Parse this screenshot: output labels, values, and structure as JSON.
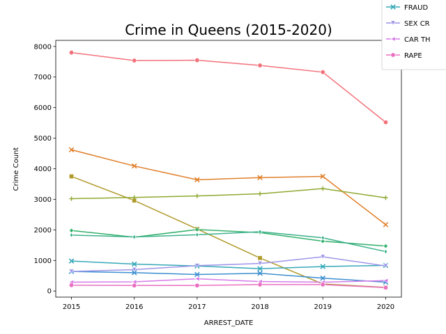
{
  "chart_data": {
    "type": "line",
    "title": "Crime in Queens (2015-2020)",
    "xlabel": "ARREST_DATE",
    "ylabel": "Crime Count",
    "x": [
      2015,
      2016,
      2017,
      2018,
      2019,
      2020
    ],
    "xlim": [
      2014.75,
      2020.25
    ],
    "ylim": [
      -200,
      8200
    ],
    "yticks": [
      0,
      1000,
      2000,
      3000,
      4000,
      5000,
      6000,
      7000,
      8000
    ],
    "grid": false,
    "legend": "upper right (partially cut off)",
    "series": [
      {
        "color": "#f2707a",
        "marker": "circle",
        "values": [
          7800,
          7540,
          7550,
          7380,
          7160,
          5520
        ]
      },
      {
        "color": "#e07f2a",
        "marker": "x",
        "values": [
          4620,
          4090,
          3640,
          3710,
          3750,
          2170
        ]
      },
      {
        "color": "#b09a2a",
        "marker": "square",
        "values": [
          3750,
          2960,
          2030,
          1080,
          230,
          120
        ]
      },
      {
        "color": "#8ea830",
        "marker": "plus",
        "values": [
          3020,
          3060,
          3110,
          3180,
          3350,
          3050
        ]
      },
      {
        "color": "#2fb06a",
        "marker": "diamond",
        "values": [
          1980,
          1760,
          2010,
          1910,
          1630,
          1470
        ]
      },
      {
        "color": "#3bb08a",
        "marker": "thin-diamond",
        "values": [
          1830,
          1770,
          1840,
          1940,
          1740,
          1290
        ]
      },
      {
        "color": "#36a8b8",
        "marker": "x",
        "values": [
          980,
          880,
          820,
          730,
          800,
          840
        ]
      },
      {
        "color": "#3c8fd0",
        "marker": "x",
        "values": [
          640,
          600,
          540,
          580,
          420,
          290
        ]
      },
      {
        "color": "#9c94e8",
        "marker": "triangle-down",
        "values": [
          640,
          700,
          830,
          900,
          1120,
          820
        ]
      },
      {
        "color": "#d67ae8",
        "marker": "triangle-left",
        "values": [
          290,
          300,
          400,
          310,
          290,
          340
        ]
      },
      {
        "color": "#ea6ec0",
        "marker": "circle",
        "values": [
          190,
          180,
          180,
          210,
          210,
          110
        ]
      }
    ],
    "legend_entries": [
      {
        "label": "FRAUD",
        "color": "#36a8b8",
        "marker": "x"
      },
      {
        "label": "SEX CR",
        "color": "#9c94e8",
        "marker": "triangle-down"
      },
      {
        "label": "CAR TH",
        "color": "#d67ae8",
        "marker": "triangle-left"
      },
      {
        "label": "RAPE",
        "color": "#ea6ec0",
        "marker": "circle"
      }
    ]
  }
}
